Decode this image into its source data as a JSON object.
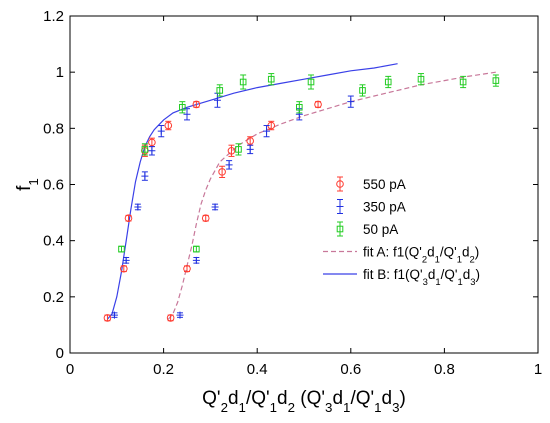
{
  "chart_data": {
    "type": "scatter",
    "x_axis": {
      "range": [
        0,
        1
      ],
      "ticks": [
        0,
        0.2,
        0.4,
        0.6,
        0.8,
        1
      ],
      "tick_labels": [
        "0",
        "0.2",
        "0.4",
        "0.6",
        "0.8",
        "1"
      ],
      "label_parts": [
        {
          "t": "Q'",
          "sub": false
        },
        {
          "t": "2",
          "sub": true
        },
        {
          "t": "d",
          "sub": false
        },
        {
          "t": "1",
          "sub": true
        },
        {
          "t": "/Q'",
          "sub": false
        },
        {
          "t": "1",
          "sub": true
        },
        {
          "t": "d",
          "sub": false
        },
        {
          "t": "2",
          "sub": true
        },
        {
          "t": " (Q'",
          "sub": false
        },
        {
          "t": "3",
          "sub": true
        },
        {
          "t": "d",
          "sub": false
        },
        {
          "t": "1",
          "sub": true
        },
        {
          "t": "/Q'",
          "sub": false
        },
        {
          "t": "1",
          "sub": true
        },
        {
          "t": "d",
          "sub": false
        },
        {
          "t": "3",
          "sub": true
        },
        {
          "t": ")",
          "sub": false
        }
      ]
    },
    "y_axis": {
      "range": [
        0,
        1.2
      ],
      "ticks": [
        0,
        0.2,
        0.4,
        0.6,
        0.8,
        1,
        1.2
      ],
      "tick_labels": [
        "0",
        "0.2",
        "0.4",
        "0.6",
        "0.8",
        "1",
        "1.2"
      ],
      "label_parts": [
        {
          "t": "f",
          "sub": false
        },
        {
          "t": "1",
          "sub": true
        }
      ]
    },
    "grid": false,
    "legend_position": "right",
    "series": [
      {
        "name": "550 pA",
        "marker": "circle",
        "color": "#ff3b30",
        "points": [
          {
            "x": 0.08,
            "y": 0.125,
            "err": 0.01
          },
          {
            "x": 0.115,
            "y": 0.3,
            "err": 0.01
          },
          {
            "x": 0.125,
            "y": 0.48,
            "err": 0.01
          },
          {
            "x": 0.16,
            "y": 0.72,
            "err": 0.02
          },
          {
            "x": 0.175,
            "y": 0.75,
            "err": 0.015
          },
          {
            "x": 0.21,
            "y": 0.81,
            "err": 0.015
          },
          {
            "x": 0.27,
            "y": 0.885,
            "err": 0.01
          },
          {
            "x": 0.215,
            "y": 0.125,
            "err": 0.01
          },
          {
            "x": 0.25,
            "y": 0.3,
            "err": 0.01
          },
          {
            "x": 0.29,
            "y": 0.48,
            "err": 0.01
          },
          {
            "x": 0.325,
            "y": 0.645,
            "err": 0.02
          },
          {
            "x": 0.345,
            "y": 0.72,
            "err": 0.02
          },
          {
            "x": 0.385,
            "y": 0.755,
            "err": 0.015
          },
          {
            "x": 0.43,
            "y": 0.81,
            "err": 0.015
          },
          {
            "x": 0.53,
            "y": 0.885,
            "err": 0.01
          }
        ]
      },
      {
        "name": "350 pA",
        "marker": "plus",
        "color": "#2030e0",
        "points": [
          {
            "x": 0.095,
            "y": 0.135,
            "err": 0.008
          },
          {
            "x": 0.12,
            "y": 0.33,
            "err": 0.01
          },
          {
            "x": 0.145,
            "y": 0.52,
            "err": 0.01
          },
          {
            "x": 0.16,
            "y": 0.63,
            "err": 0.015
          },
          {
            "x": 0.175,
            "y": 0.72,
            "err": 0.015
          },
          {
            "x": 0.195,
            "y": 0.79,
            "err": 0.02
          },
          {
            "x": 0.25,
            "y": 0.85,
            "err": 0.02
          },
          {
            "x": 0.315,
            "y": 0.9,
            "err": 0.025
          },
          {
            "x": 0.235,
            "y": 0.135,
            "err": 0.008
          },
          {
            "x": 0.27,
            "y": 0.33,
            "err": 0.01
          },
          {
            "x": 0.31,
            "y": 0.52,
            "err": 0.01
          },
          {
            "x": 0.34,
            "y": 0.67,
            "err": 0.015
          },
          {
            "x": 0.385,
            "y": 0.725,
            "err": 0.015
          },
          {
            "x": 0.42,
            "y": 0.79,
            "err": 0.02
          },
          {
            "x": 0.49,
            "y": 0.85,
            "err": 0.02
          },
          {
            "x": 0.6,
            "y": 0.895,
            "err": 0.02
          }
        ]
      },
      {
        "name": "50 pA",
        "marker": "square",
        "color": "#22cc22",
        "points": [
          {
            "x": 0.11,
            "y": 0.37,
            "err": 0.01
          },
          {
            "x": 0.16,
            "y": 0.725,
            "err": 0.02
          },
          {
            "x": 0.24,
            "y": 0.875,
            "err": 0.02
          },
          {
            "x": 0.32,
            "y": 0.935,
            "err": 0.02
          },
          {
            "x": 0.37,
            "y": 0.965,
            "err": 0.025
          },
          {
            "x": 0.43,
            "y": 0.975,
            "err": 0.02
          },
          {
            "x": 0.515,
            "y": 0.965,
            "err": 0.025
          },
          {
            "x": 0.27,
            "y": 0.37,
            "err": 0.01
          },
          {
            "x": 0.36,
            "y": 0.725,
            "err": 0.02
          },
          {
            "x": 0.49,
            "y": 0.875,
            "err": 0.02
          },
          {
            "x": 0.625,
            "y": 0.935,
            "err": 0.02
          },
          {
            "x": 0.68,
            "y": 0.965,
            "err": 0.02
          },
          {
            "x": 0.75,
            "y": 0.975,
            "err": 0.02
          },
          {
            "x": 0.84,
            "y": 0.965,
            "err": 0.02
          },
          {
            "x": 0.91,
            "y": 0.97,
            "err": 0.02
          }
        ]
      }
    ],
    "fits": [
      {
        "name_parts": [
          {
            "t": "fit A: f1(Q'",
            "sub": false
          },
          {
            "t": "2",
            "sub": true
          },
          {
            "t": "d",
            "sub": false
          },
          {
            "t": "1",
            "sub": true
          },
          {
            "t": "/Q'",
            "sub": false
          },
          {
            "t": "1",
            "sub": true
          },
          {
            "t": "d",
            "sub": false
          },
          {
            "t": "2",
            "sub": true
          },
          {
            "t": ")",
            "sub": false
          }
        ],
        "style": "dashed",
        "color": "#c8789a",
        "points": [
          [
            0.21,
            0.12
          ],
          [
            0.22,
            0.14
          ],
          [
            0.23,
            0.18
          ],
          [
            0.24,
            0.24
          ],
          [
            0.25,
            0.31
          ],
          [
            0.26,
            0.38
          ],
          [
            0.27,
            0.46
          ],
          [
            0.28,
            0.53
          ],
          [
            0.29,
            0.58
          ],
          [
            0.3,
            0.62
          ],
          [
            0.31,
            0.65
          ],
          [
            0.32,
            0.68
          ],
          [
            0.34,
            0.71
          ],
          [
            0.36,
            0.74
          ],
          [
            0.4,
            0.78
          ],
          [
            0.45,
            0.815
          ],
          [
            0.5,
            0.845
          ],
          [
            0.55,
            0.87
          ],
          [
            0.6,
            0.895
          ],
          [
            0.65,
            0.915
          ],
          [
            0.7,
            0.935
          ],
          [
            0.75,
            0.955
          ],
          [
            0.8,
            0.97
          ],
          [
            0.85,
            0.985
          ],
          [
            0.91,
            1.0
          ]
        ]
      },
      {
        "name_parts": [
          {
            "t": "fit B: f1(Q'",
            "sub": false
          },
          {
            "t": "3",
            "sub": true
          },
          {
            "t": "d",
            "sub": false
          },
          {
            "t": "1",
            "sub": true
          },
          {
            "t": "/Q'",
            "sub": false
          },
          {
            "t": "1",
            "sub": true
          },
          {
            "t": "d",
            "sub": false
          },
          {
            "t": "3",
            "sub": true
          },
          {
            "t": ")",
            "sub": false
          }
        ],
        "style": "solid",
        "color": "#3a40e8",
        "points": [
          [
            0.08,
            0.12
          ],
          [
            0.09,
            0.14
          ],
          [
            0.1,
            0.2
          ],
          [
            0.11,
            0.29
          ],
          [
            0.12,
            0.4
          ],
          [
            0.13,
            0.51
          ],
          [
            0.14,
            0.61
          ],
          [
            0.15,
            0.68
          ],
          [
            0.16,
            0.735
          ],
          [
            0.17,
            0.77
          ],
          [
            0.18,
            0.795
          ],
          [
            0.2,
            0.83
          ],
          [
            0.22,
            0.855
          ],
          [
            0.25,
            0.875
          ],
          [
            0.3,
            0.9
          ],
          [
            0.35,
            0.925
          ],
          [
            0.4,
            0.945
          ],
          [
            0.45,
            0.96
          ],
          [
            0.5,
            0.975
          ],
          [
            0.55,
            0.99
          ],
          [
            0.6,
            1.005
          ],
          [
            0.65,
            1.015
          ],
          [
            0.7,
            1.03
          ]
        ]
      }
    ]
  }
}
